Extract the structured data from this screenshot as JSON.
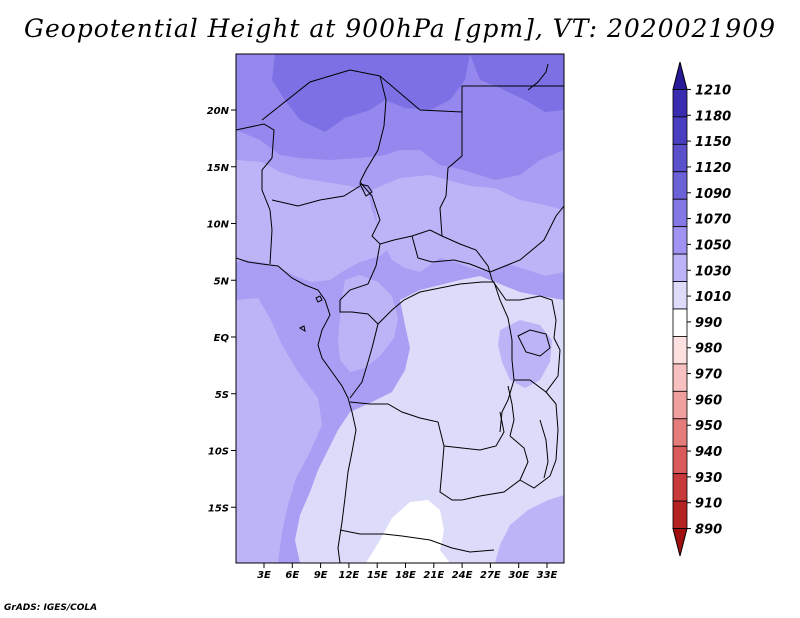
{
  "title": "Geopotential Height at 900hPa [gpm], VT: 2020021909",
  "credit": "GrADS: IGES/COLA",
  "map": {
    "lat_labels": [
      "20N",
      "15N",
      "10N",
      "5N",
      "EQ",
      "5S",
      "10S",
      "15S"
    ],
    "lon_labels": [
      "3E",
      "6E",
      "9E",
      "12E",
      "15E",
      "18E",
      "21E",
      "24E",
      "27E",
      "30E",
      "33E"
    ]
  },
  "colorbar": {
    "levels": [
      "1210",
      "1180",
      "1150",
      "1120",
      "1090",
      "1070",
      "1050",
      "1030",
      "1010",
      "990",
      "980",
      "970",
      "960",
      "950",
      "940",
      "930",
      "910",
      "890"
    ],
    "colors": [
      "#2a1a9a",
      "#3a2cae",
      "#4a3ec0",
      "#5a50cc",
      "#6c62d8",
      "#8478e6",
      "#9f94f2",
      "#bdb4f8",
      "#dcdcfa",
      "#ffffff",
      "#fde0e0",
      "#f8c0c0",
      "#f09e9e",
      "#e47c7c",
      "#d85a5a",
      "#c83a3a",
      "#b42222",
      "#a01010"
    ]
  },
  "field_colors": {
    "c1090": "#7d70e4",
    "c1070": "#9488ee",
    "c1050": "#a89ef4",
    "c1030": "#bdb4f8",
    "c1010": "#dcdcfa",
    "c990": "#ffffff"
  }
}
